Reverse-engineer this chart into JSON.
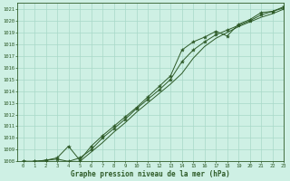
{
  "title": "Graphe pression niveau de la mer (hPa)",
  "bg_color": "#cef0e4",
  "grid_color": "#a8d8c8",
  "line_color": "#2d5a27",
  "marker_color": "#2d5a27",
  "xlim": [
    -0.5,
    23
  ],
  "ylim": [
    1008,
    1021.5
  ],
  "xtick_labels": [
    "0",
    "1",
    "2",
    "3",
    "4",
    "5",
    "6",
    "7",
    "8",
    "9",
    "10",
    "11",
    "12",
    "13",
    "14",
    "15",
    "16",
    "17",
    "18",
    "19",
    "20",
    "21",
    "22",
    "23"
  ],
  "ytick_values": [
    1008,
    1009,
    1010,
    1011,
    1012,
    1013,
    1014,
    1015,
    1016,
    1017,
    1018,
    1019,
    1020,
    1021
  ],
  "hours": [
    0,
    1,
    2,
    3,
    4,
    5,
    6,
    7,
    8,
    9,
    10,
    11,
    12,
    13,
    14,
    15,
    16,
    17,
    18,
    19,
    20,
    21,
    22,
    23
  ],
  "series1": [
    1008.0,
    1008.0,
    1008.1,
    1008.3,
    1009.3,
    1008.1,
    1009.3,
    1010.2,
    1011.0,
    1011.8,
    1012.6,
    1013.5,
    1014.4,
    1015.3,
    1017.5,
    1018.2,
    1018.6,
    1019.1,
    1018.7,
    1019.7,
    1020.1,
    1020.7,
    1020.8,
    1021.2
  ],
  "series2": [
    1008.0,
    1008.0,
    1008.1,
    1008.2,
    1008.0,
    1008.3,
    1009.0,
    1010.0,
    1010.8,
    1011.6,
    1012.5,
    1013.3,
    1014.1,
    1015.0,
    1016.5,
    1017.5,
    1018.2,
    1018.8,
    1019.2,
    1019.6,
    1020.0,
    1020.5,
    1020.8,
    1021.1
  ],
  "series3": [
    1008.0,
    1008.0,
    1008.0,
    1008.0,
    1008.0,
    1008.0,
    1008.8,
    1009.6,
    1010.5,
    1011.3,
    1012.2,
    1013.0,
    1013.8,
    1014.6,
    1015.5,
    1016.8,
    1017.8,
    1018.5,
    1019.0,
    1019.5,
    1019.9,
    1020.3,
    1020.6,
    1021.0
  ]
}
